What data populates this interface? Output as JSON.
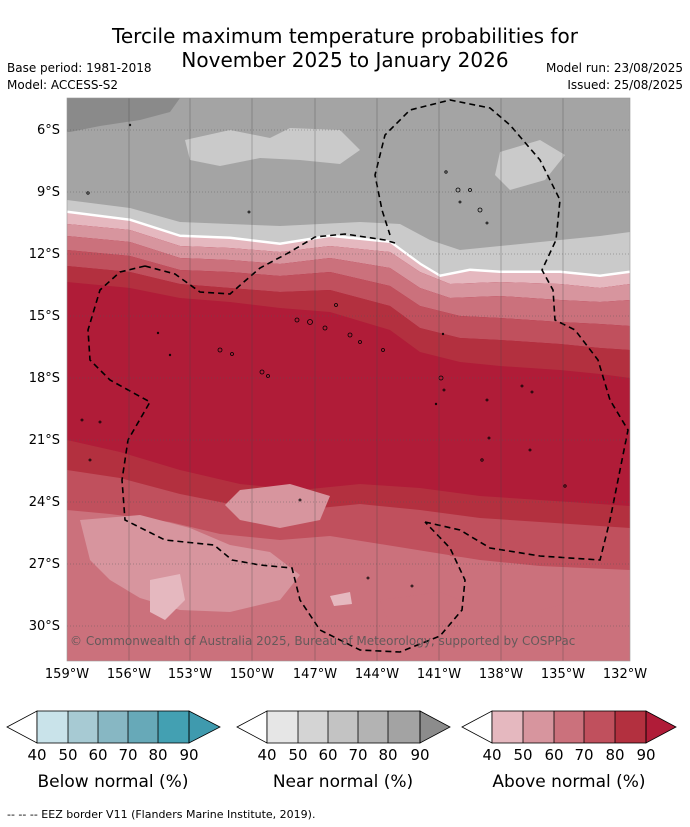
{
  "title_line1": "Tercile maximum temperature probabilities for",
  "title_line2": "November 2025 to January 2026",
  "base_period": "Base period: 1981-2018",
  "model": "Model: ACCESS-S2",
  "model_run": "Model run: 23/08/2025",
  "issued": "Issued: 25/08/2025",
  "copyright": "© Commonwealth of Australia 2025, Bureau of Meteorology, supported by COSPPac",
  "lat_labels": [
    "6°S",
    "9°S",
    "12°S",
    "15°S",
    "18°S",
    "21°S",
    "24°S",
    "27°S",
    "30°S"
  ],
  "lon_labels": [
    "159°W",
    "156°W",
    "153°W",
    "150°W",
    "147°W",
    "144°W",
    "141°W",
    "138°W",
    "135°W",
    "132°W"
  ],
  "colorbars": [
    {
      "title": "Below normal (%)",
      "ticks": [
        "40",
        "50",
        "60",
        "70",
        "80",
        "90"
      ],
      "colors": [
        "#c9e3ea",
        "#a7cad3",
        "#87b7c3",
        "#67a9b8",
        "#43a0b2"
      ]
    },
    {
      "title": "Near normal (%)",
      "ticks": [
        "40",
        "50",
        "60",
        "70",
        "80",
        "90"
      ],
      "colors": [
        "#e6e6e6",
        "#d4d4d4",
        "#c3c3c3",
        "#b3b3b3",
        "#a3a3a3"
      ]
    },
    {
      "title": "Above normal (%)",
      "ticks": [
        "40",
        "50",
        "60",
        "70",
        "80",
        "90"
      ],
      "colors": [
        "#e5b8bf",
        "#d7959e",
        "#cb717c",
        "#c0505d",
        "#b3303f"
      ]
    }
  ],
  "map_colors": {
    "near_normal_light": "#cacaca",
    "near_normal_mid": "#a4a4a4",
    "near_normal_dark": "#8a8a8a",
    "above_40": "#e5b8bf",
    "above_50": "#d7959e",
    "above_60": "#cb717c",
    "above_70": "#c0505d",
    "above_80": "#b3303f",
    "above_90": "#b01c38"
  },
  "footer": "--  --  -- EEZ border V11 (Flanders Marine Institute, 2019)."
}
